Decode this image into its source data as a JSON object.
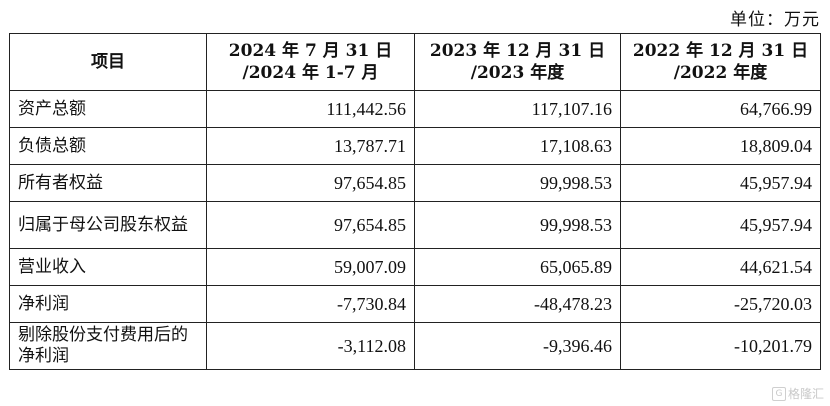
{
  "unit_label": "单位：万元",
  "table": {
    "headers": [
      [
        "项目"
      ],
      [
        "2024 年 7 月 31 日",
        "/2024 年 1-7 月"
      ],
      [
        "2023 年 12 月 31 日",
        "/2023 年度"
      ],
      [
        "2022 年 12 月 31 日",
        "/2022 年度"
      ]
    ],
    "rows": [
      {
        "item": "资产总额",
        "v2024": "111,442.56",
        "v2023": "117,107.16",
        "v2022": "64,766.99"
      },
      {
        "item": "负债总额",
        "v2024": "13,787.71",
        "v2023": "17,108.63",
        "v2022": "18,809.04"
      },
      {
        "item": "所有者权益",
        "v2024": "97,654.85",
        "v2023": "99,998.53",
        "v2022": "45,957.94"
      },
      {
        "item": "归属于母公司股东权益",
        "v2024": "97,654.85",
        "v2023": "99,998.53",
        "v2022": "45,957.94"
      },
      {
        "item": "营业收入",
        "v2024": "59,007.09",
        "v2023": "65,065.89",
        "v2022": "44,621.54"
      },
      {
        "item": "净利润",
        "v2024": "-7,730.84",
        "v2023": "-48,478.23",
        "v2022": "-25,720.03"
      },
      {
        "item": "剔除股份支付费用后的净利润",
        "v2024": "-3,112.08",
        "v2023": "-9,396.46",
        "v2022": "-10,201.79"
      }
    ]
  },
  "watermark": {
    "logo": "G",
    "text": "格隆汇"
  }
}
